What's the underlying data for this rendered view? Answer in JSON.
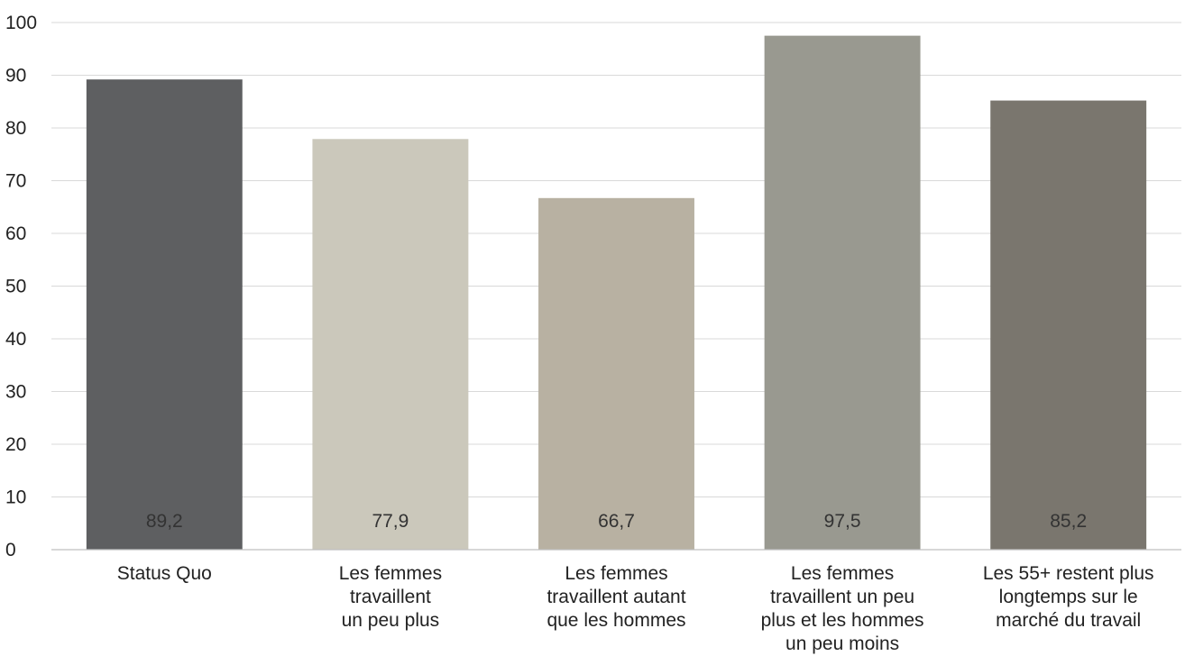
{
  "chart_data": {
    "type": "bar",
    "title": "",
    "xlabel": "",
    "ylabel": "",
    "ylim": [
      0,
      100
    ],
    "yticks": [
      0,
      10,
      20,
      30,
      40,
      50,
      60,
      70,
      80,
      90,
      100
    ],
    "grid": true,
    "legend": "none",
    "categories": [
      [
        "Status Quo"
      ],
      [
        "Les femmes",
        "travaillent",
        "un peu plus"
      ],
      [
        "Les femmes",
        "travaillent autant",
        "que les hommes"
      ],
      [
        "Les femmes",
        "travaillent un peu",
        "plus et les hommes",
        "un peu moins"
      ],
      [
        "Les 55+ restent plus",
        "longtemps sur le",
        "marché du travail"
      ]
    ],
    "values": [
      89.2,
      77.9,
      66.7,
      97.5,
      85.2
    ],
    "value_labels": [
      "89,2",
      "77,9",
      "66,7",
      "97,5",
      "85,2"
    ],
    "colors": [
      "#5e5f61",
      "#cbc8bb",
      "#b8b1a2",
      "#999990",
      "#7a766e"
    ]
  }
}
